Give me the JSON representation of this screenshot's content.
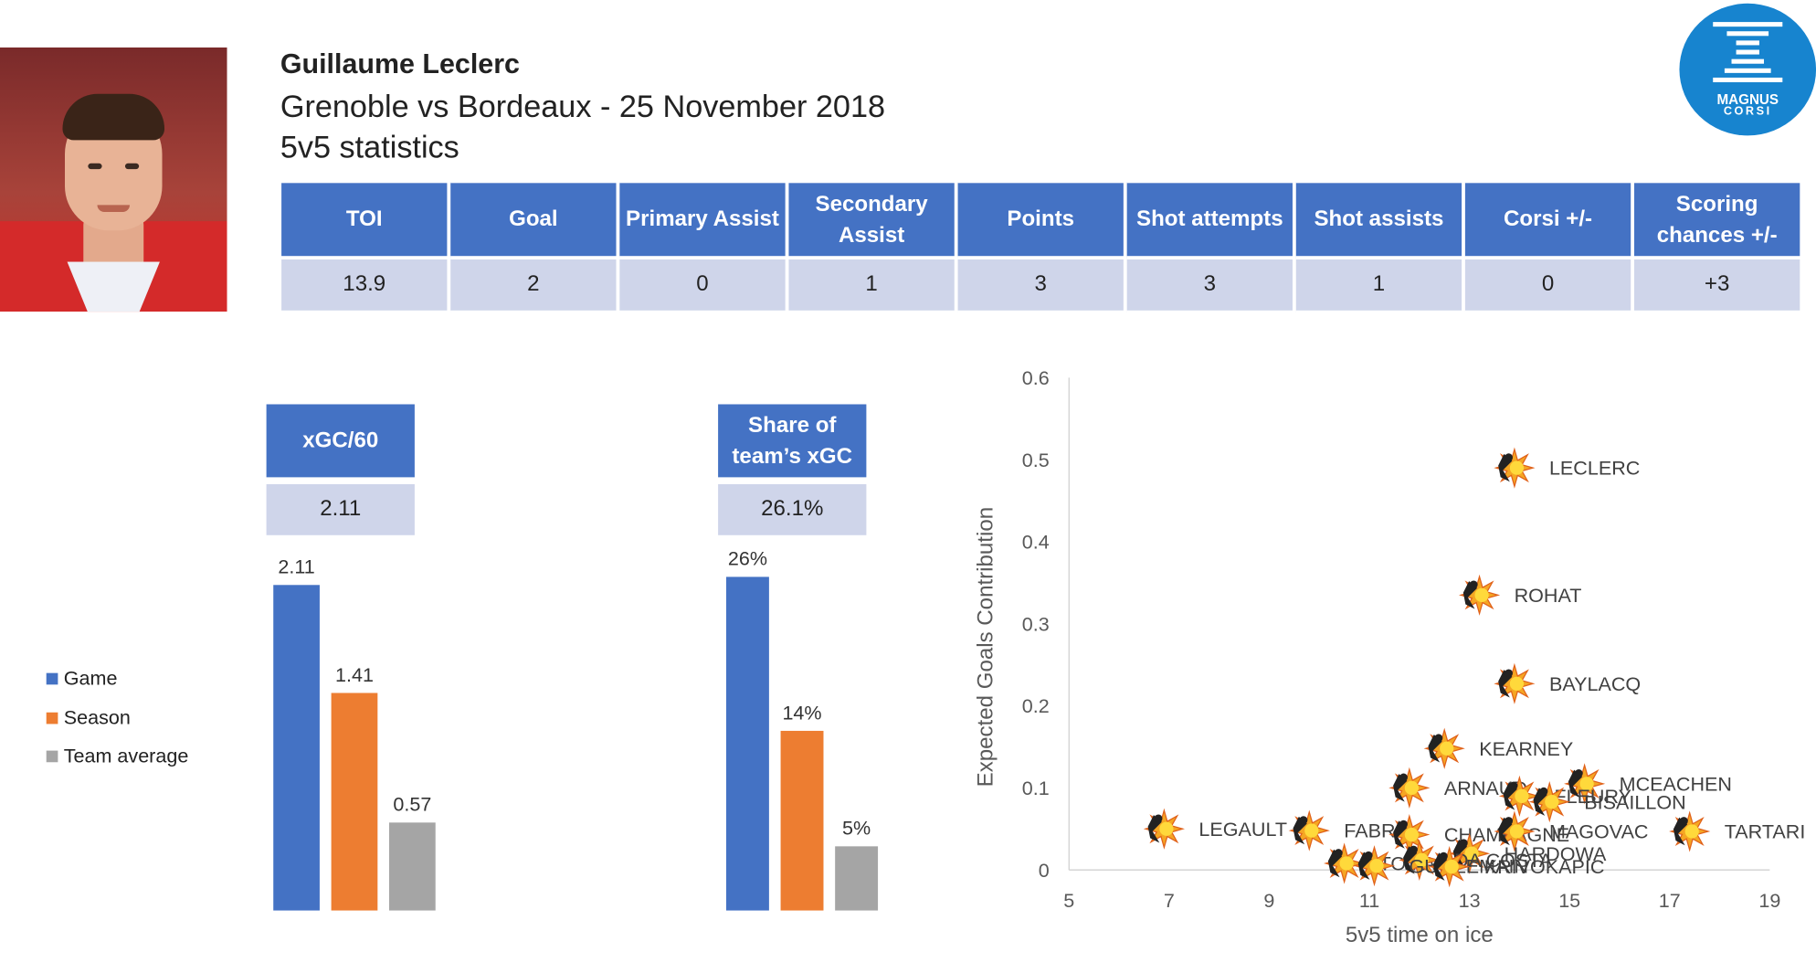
{
  "player": {
    "name": "Guillaume Leclerc",
    "match": "Grenoble vs Bordeaux - 25 November 2018",
    "subtitle": "5v5 statistics"
  },
  "logo": {
    "line1": "MAGNUS",
    "line2": "CORSI"
  },
  "stats_table": {
    "headers": [
      "TOI",
      "Goal",
      "Primary Assist",
      "Secondary Assist",
      "Points",
      "Shot attempts",
      "Shot assists",
      "Corsi +/-",
      "Scoring chances +/-"
    ],
    "values": [
      "13.9",
      "2",
      "0",
      "1",
      "3",
      "3",
      "1",
      "0",
      "+3"
    ]
  },
  "xgc_box": {
    "label": "xGC/60",
    "value": "2.11"
  },
  "share_box": {
    "label": "Share of team’s xGC",
    "value": "26.1%"
  },
  "legend": [
    {
      "label": "Game",
      "color": "#4472c4"
    },
    {
      "label": "Season",
      "color": "#ed7d31"
    },
    {
      "label": "Team average",
      "color": "#a5a5a5"
    }
  ],
  "chart_data": [
    {
      "type": "bar",
      "categories": [
        "Game",
        "Season",
        "Team average"
      ],
      "values": [
        2.11,
        1.41,
        0.57
      ],
      "value_labels": [
        "2.11",
        "1.41",
        "0.57"
      ],
      "colors": [
        "#4472c4",
        "#ed7d31",
        "#a5a5a5"
      ]
    },
    {
      "type": "bar",
      "categories": [
        "Game",
        "Season",
        "Team average"
      ],
      "values": [
        26,
        14,
        5
      ],
      "value_labels": [
        "26%",
        "14%",
        "5%"
      ],
      "colors": [
        "#4472c4",
        "#ed7d31",
        "#a5a5a5"
      ]
    },
    {
      "type": "scatter",
      "xlabel": "5v5 time on ice",
      "ylabel": "Expected Goals Contribution",
      "xlim": [
        5,
        19
      ],
      "ylim": [
        0,
        0.6
      ],
      "xticks": [
        5,
        7,
        9,
        11,
        13,
        15,
        17,
        19
      ],
      "yticks": [
        0,
        0.1,
        0.2,
        0.3,
        0.4,
        0.5,
        0.6
      ],
      "ytick_labels": [
        "0",
        "0.1",
        "0.2",
        "0.3",
        "0.4",
        "0.5",
        "0.6"
      ],
      "grid": false,
      "points": [
        {
          "label": "LECLERC",
          "x": 13.9,
          "y": 0.49
        },
        {
          "label": "ROHAT",
          "x": 13.2,
          "y": 0.335
        },
        {
          "label": "BAYLACQ",
          "x": 13.9,
          "y": 0.227
        },
        {
          "label": "KEARNEY",
          "x": 12.5,
          "y": 0.148
        },
        {
          "label": "MCEACHEN",
          "x": 15.3,
          "y": 0.105
        },
        {
          "label": "ARNAUD",
          "x": 11.8,
          "y": 0.1
        },
        {
          "label": "FLEURY",
          "x": 14.0,
          "y": 0.09
        },
        {
          "label": "BISAILLON",
          "x": 14.6,
          "y": 0.083
        },
        {
          "label": "LEGAULT",
          "x": 6.9,
          "y": 0.05
        },
        {
          "label": "FABRE",
          "x": 9.8,
          "y": 0.048
        },
        {
          "label": "CHAMPAGNE",
          "x": 11.8,
          "y": 0.043
        },
        {
          "label": "MAGOVAC",
          "x": 13.9,
          "y": 0.047
        },
        {
          "label": "TARTARI",
          "x": 17.4,
          "y": 0.047
        },
        {
          "label": "HARDOWA",
          "x": 13.0,
          "y": 0.02
        },
        {
          "label": "TOMA",
          "x": 10.5,
          "y": 0.008
        },
        {
          "label": "DA COSTA",
          "x": 12.0,
          "y": 0.012
        },
        {
          "label": "GUILLEMAIN",
          "x": 11.1,
          "y": 0.005
        },
        {
          "label": "KRIVOKAPIC",
          "x": 12.6,
          "y": 0.004
        }
      ]
    }
  ]
}
